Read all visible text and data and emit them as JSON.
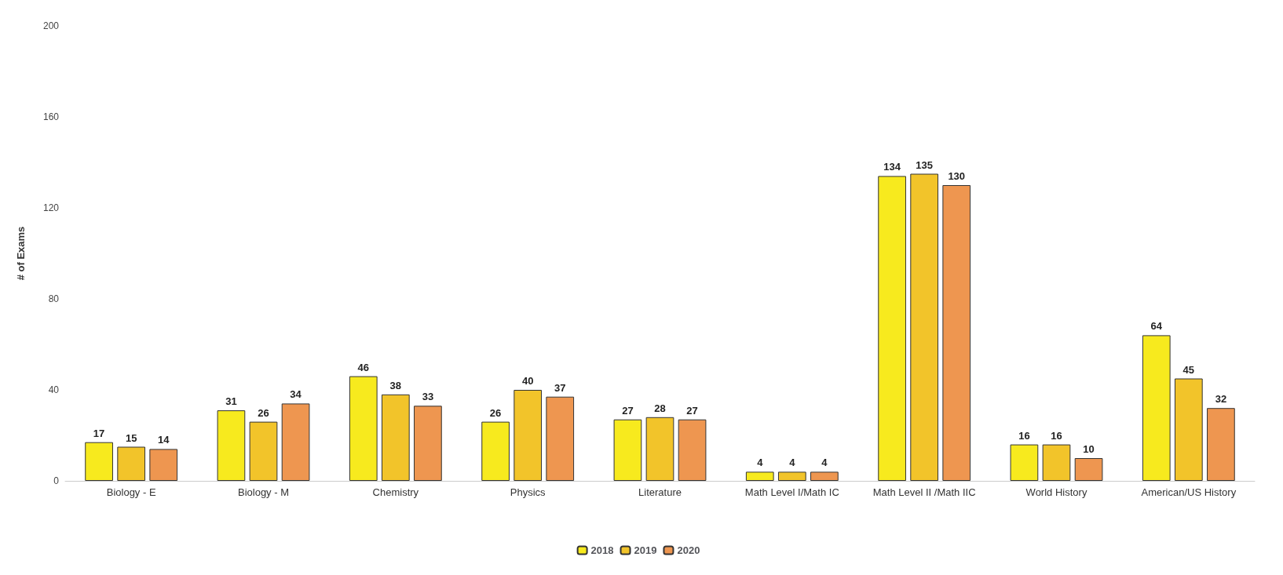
{
  "chart_data": {
    "type": "bar",
    "ylabel": "# of Exams",
    "categories": [
      "Biology - E",
      "Biology - M",
      "Chemistry",
      "Physics",
      "Literature",
      "Math Level I/Math IC",
      "Math Level II /Math IIC",
      "World History",
      "American/US History"
    ],
    "series": [
      {
        "name": "2018",
        "color": "#f7ea1e",
        "values": [
          17,
          31,
          46,
          26,
          27,
          4,
          134,
          16,
          64
        ]
      },
      {
        "name": "2019",
        "color": "#f2c42a",
        "values": [
          15,
          26,
          38,
          40,
          28,
          4,
          135,
          16,
          45
        ]
      },
      {
        "name": "2020",
        "color": "#ee9650",
        "values": [
          14,
          34,
          33,
          37,
          27,
          4,
          130,
          10,
          32
        ]
      }
    ],
    "ylim": [
      0,
      200
    ],
    "yticks": [
      0,
      40,
      80,
      120,
      160,
      200
    ],
    "grid": false,
    "legend": "bottom",
    "data_labels": true
  }
}
